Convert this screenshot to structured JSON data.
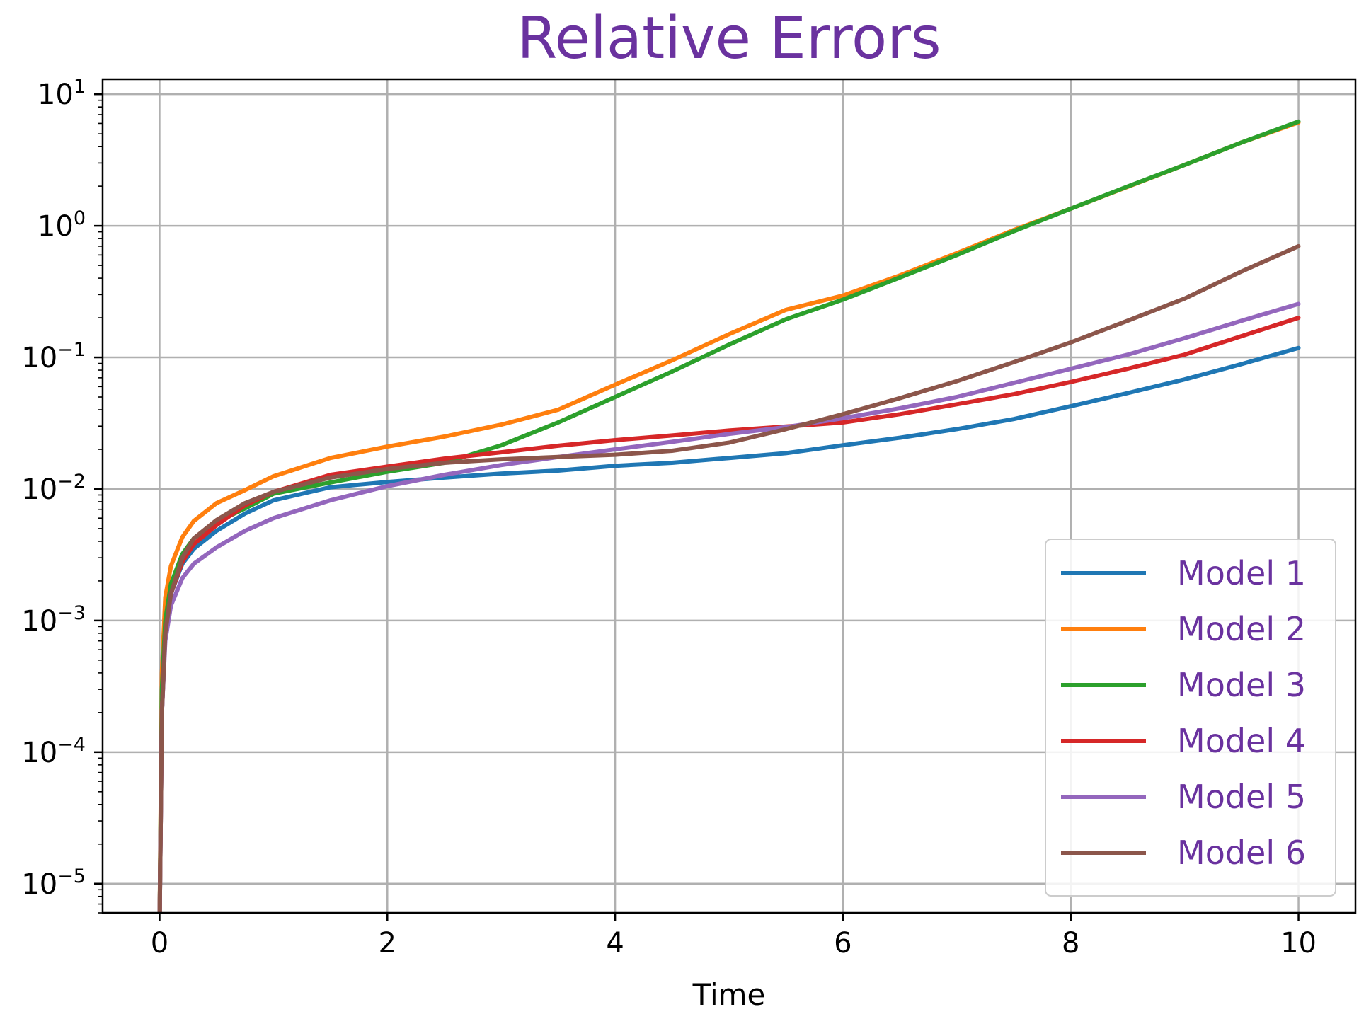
{
  "chart_data": {
    "type": "line",
    "title": "Relative Errors",
    "xlabel": "Time",
    "ylabel": "",
    "xlim": [
      -0.5,
      10.5
    ],
    "ylim": [
      6e-06,
      13
    ],
    "yscale": "log",
    "grid": true,
    "legend_position": "lower-right",
    "x_ticks": [
      "0",
      "2",
      "4",
      "6",
      "8",
      "10"
    ],
    "y_ticks": [
      {
        "base": "10",
        "exp": "1"
      },
      {
        "base": "10",
        "exp": "0"
      },
      {
        "base": "10",
        "exp": "−1"
      },
      {
        "base": "10",
        "exp": "−2"
      },
      {
        "base": "10",
        "exp": "−3"
      },
      {
        "base": "10",
        "exp": "−4"
      },
      {
        "base": "10",
        "exp": "−5"
      }
    ],
    "x": [
      0,
      0.02,
      0.05,
      0.1,
      0.2,
      0.3,
      0.5,
      0.75,
      1,
      1.5,
      2,
      2.5,
      3,
      3.5,
      4,
      4.5,
      5,
      5.5,
      6,
      6.5,
      7,
      7.5,
      8,
      8.5,
      9,
      9.5,
      10
    ],
    "series": [
      {
        "name": "Model 1",
        "color": "#1f77b4",
        "values": [
          5e-06,
          0.0002,
          0.0008,
          0.0016,
          0.0027,
          0.0035,
          0.0048,
          0.0065,
          0.0082,
          0.0103,
          0.0113,
          0.0122,
          0.0131,
          0.0138,
          0.015,
          0.0158,
          0.0172,
          0.0187,
          0.0215,
          0.0245,
          0.0285,
          0.034,
          0.0425,
          0.0535,
          0.068,
          0.089,
          0.118
        ]
      },
      {
        "name": "Model 2",
        "color": "#ff7f0e",
        "values": [
          5e-06,
          0.0004,
          0.0015,
          0.0026,
          0.0043,
          0.0057,
          0.0078,
          0.0098,
          0.0125,
          0.0172,
          0.021,
          0.025,
          0.0308,
          0.04,
          0.062,
          0.095,
          0.15,
          0.23,
          0.295,
          0.42,
          0.62,
          0.93,
          1.35,
          1.98,
          2.9,
          4.3,
          6.1
        ]
      },
      {
        "name": "Model 3",
        "color": "#2ca02c",
        "values": [
          5e-06,
          0.0003,
          0.001,
          0.0019,
          0.0032,
          0.0042,
          0.0056,
          0.0071,
          0.0092,
          0.0112,
          0.0135,
          0.0158,
          0.0215,
          0.032,
          0.05,
          0.078,
          0.125,
          0.195,
          0.275,
          0.405,
          0.6,
          0.91,
          1.35,
          1.99,
          2.9,
          4.3,
          6.2
        ]
      },
      {
        "name": "Model 4",
        "color": "#d62728",
        "values": [
          5e-06,
          0.0002,
          0.0008,
          0.0016,
          0.0028,
          0.0038,
          0.0053,
          0.0075,
          0.0095,
          0.0128,
          0.0148,
          0.017,
          0.019,
          0.0213,
          0.0235,
          0.0255,
          0.0278,
          0.0298,
          0.032,
          0.037,
          0.044,
          0.0525,
          0.065,
          0.082,
          0.105,
          0.145,
          0.2
        ]
      },
      {
        "name": "Model 5",
        "color": "#9467bd",
        "values": [
          5e-06,
          0.0002,
          0.0007,
          0.0013,
          0.0021,
          0.0027,
          0.0036,
          0.0048,
          0.006,
          0.0082,
          0.0105,
          0.0128,
          0.0152,
          0.0175,
          0.02,
          0.0228,
          0.0262,
          0.0295,
          0.0345,
          0.041,
          0.05,
          0.064,
          0.082,
          0.105,
          0.14,
          0.19,
          0.255
        ]
      },
      {
        "name": "Model 6",
        "color": "#8c564b",
        "values": [
          5e-06,
          0.0002,
          0.0008,
          0.0016,
          0.003,
          0.0042,
          0.0058,
          0.0078,
          0.0095,
          0.0122,
          0.0142,
          0.0158,
          0.0168,
          0.0175,
          0.0182,
          0.0195,
          0.0225,
          0.0285,
          0.037,
          0.049,
          0.066,
          0.092,
          0.13,
          0.19,
          0.28,
          0.45,
          0.7
        ]
      }
    ],
    "colors": {
      "title": "#6a329f",
      "legend_text": "#6a329f",
      "grid": "#b0b0b0",
      "axes": "#000000"
    }
  }
}
